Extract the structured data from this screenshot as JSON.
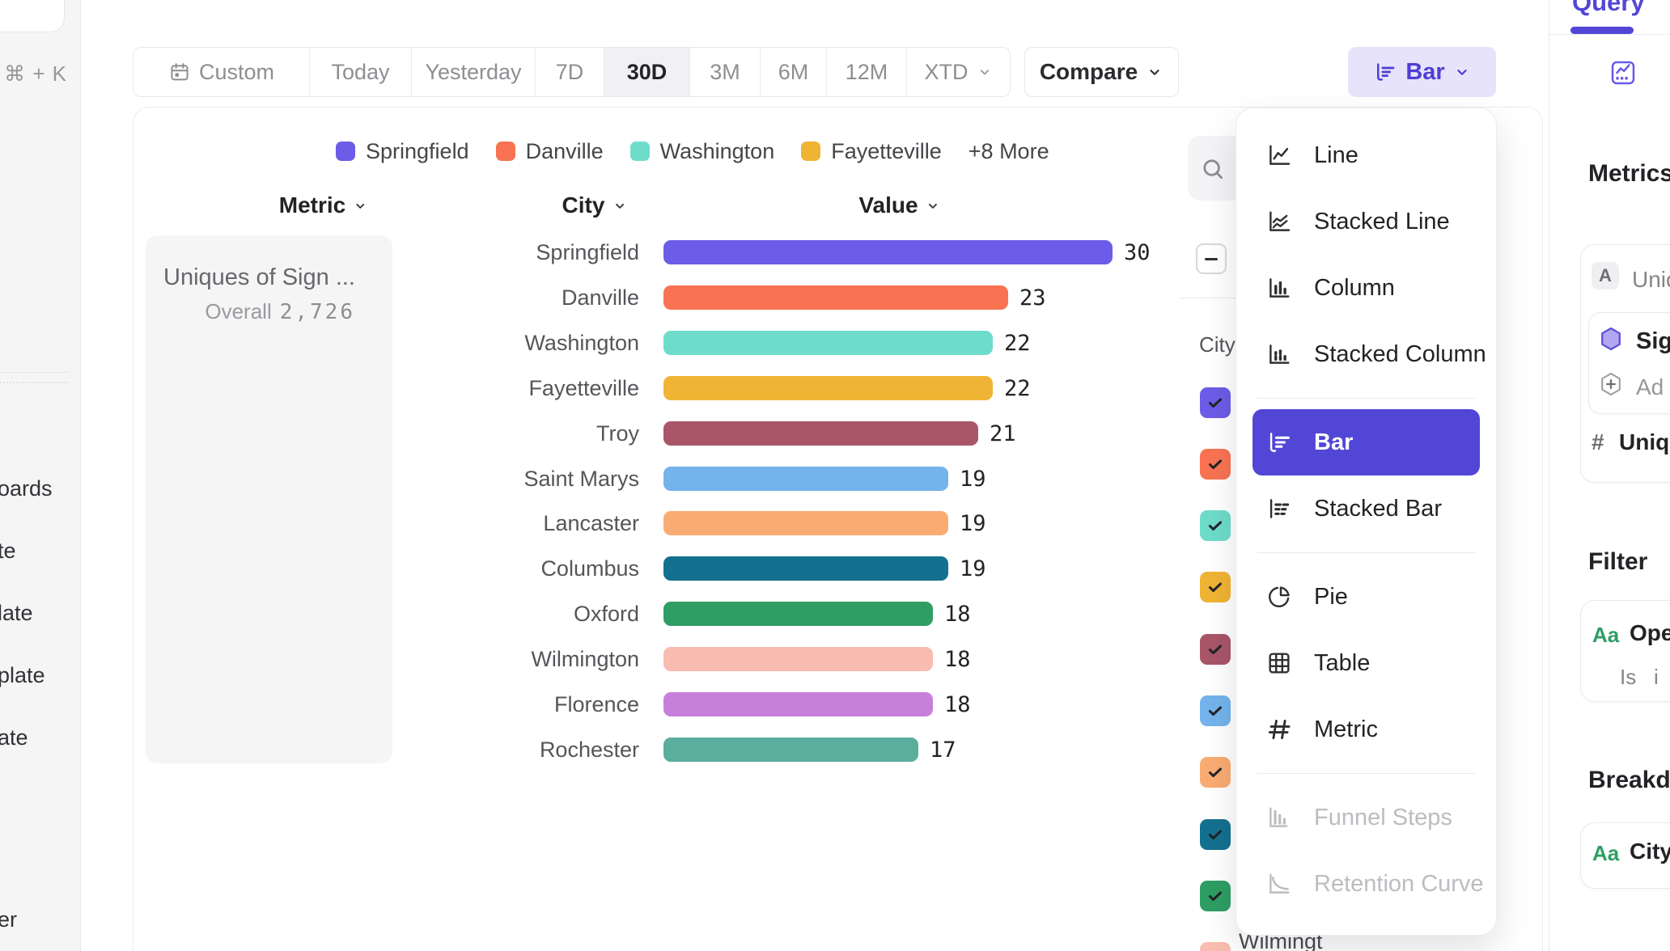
{
  "app": {
    "accent_color": "#5246D6"
  },
  "left_sidebar": {
    "shortcut": "⌘ + K",
    "items": [
      "oards",
      "te",
      "late",
      "plate",
      "ate",
      "er"
    ]
  },
  "toolbar": {
    "date_ranges": [
      "Custom",
      "Today",
      "Yesterday",
      "7D",
      "30D",
      "3M",
      "6M",
      "12M",
      "XTD"
    ],
    "active_range": "30D",
    "compare_label": "Compare",
    "chart_type_label": "Bar"
  },
  "legend": {
    "items": [
      {
        "label": "Springfield",
        "color": "#6C5CE7"
      },
      {
        "label": "Danville",
        "color": "#F97352"
      },
      {
        "label": "Washington",
        "color": "#6EDCCB"
      },
      {
        "label": "Fayetteville",
        "color": "#F0B434"
      }
    ],
    "more_label": "+8 More"
  },
  "columns": {
    "metric": "Metric",
    "city": "City",
    "value": "Value"
  },
  "metric_card": {
    "title": "Uniques of Sign ...",
    "overall_label": "Overall",
    "overall_value": "2,726"
  },
  "chart_data": {
    "type": "bar",
    "orientation": "horizontal",
    "title": "Uniques of Sign ...",
    "overall_total": 2726,
    "categories": [
      "Springfield",
      "Danville",
      "Washington",
      "Fayetteville",
      "Troy",
      "Saint Marys",
      "Lancaster",
      "Columbus",
      "Oxford",
      "Wilmington",
      "Florence",
      "Rochester"
    ],
    "values": [
      30,
      23,
      22,
      22,
      21,
      19,
      19,
      19,
      18,
      18,
      18,
      17
    ],
    "colors": [
      "#6C5CE7",
      "#F97352",
      "#6EDCCB",
      "#F0B434",
      "#A85668",
      "#74B3EC",
      "#F9AC72",
      "#14708F",
      "#2E9E64",
      "#F9BCB0",
      "#C77FDC",
      "#5BAD9E"
    ],
    "xlim": [
      0,
      30
    ],
    "value_labels": true,
    "grid": false,
    "legend_position": "top"
  },
  "series_panel": {
    "group_label": "City",
    "select_all_state": "indeterminate",
    "checkbox_colors": [
      "#6C5CE7",
      "#F97352",
      "#6EDCCB",
      "#F0B434",
      "#A85668",
      "#74B3EC",
      "#F9AC72",
      "#14708F",
      "#2E9E64",
      "#F9BCB0"
    ],
    "partial_row_label": "Wilmingt"
  },
  "chart_type_menu": {
    "items": [
      {
        "label": "Line",
        "icon": "line"
      },
      {
        "label": "Stacked Line",
        "icon": "stacked-line"
      },
      {
        "label": "Column",
        "icon": "column"
      },
      {
        "label": "Stacked Column",
        "icon": "stacked-column"
      },
      {
        "divider": true
      },
      {
        "label": "Bar",
        "icon": "bar",
        "selected": true
      },
      {
        "label": "Stacked Bar",
        "icon": "stacked-bar"
      },
      {
        "divider": true
      },
      {
        "label": "Pie",
        "icon": "pie"
      },
      {
        "label": "Table",
        "icon": "table"
      },
      {
        "label": "Metric",
        "icon": "metric"
      },
      {
        "divider": true
      },
      {
        "label": "Funnel Steps",
        "icon": "funnel",
        "disabled": true
      },
      {
        "label": "Retention Curve",
        "icon": "retention",
        "disabled": true
      }
    ]
  },
  "right_sidebar": {
    "tab": "Query",
    "metrics_heading": "Metrics",
    "metric_group": {
      "badge": "A",
      "badge_row_label": "Unic",
      "event_name": "Sig",
      "add_label": "Ad",
      "measure_symbol": "#",
      "measure_label": "Uniqu"
    },
    "filter_heading": "Filter",
    "filter": {
      "type_badge": "Aa",
      "property": "Ope",
      "operator": "Is",
      "value": "i"
    },
    "breakdown_heading": "Breakdo",
    "breakdown": {
      "type_badge": "Aa",
      "property": "City"
    }
  }
}
